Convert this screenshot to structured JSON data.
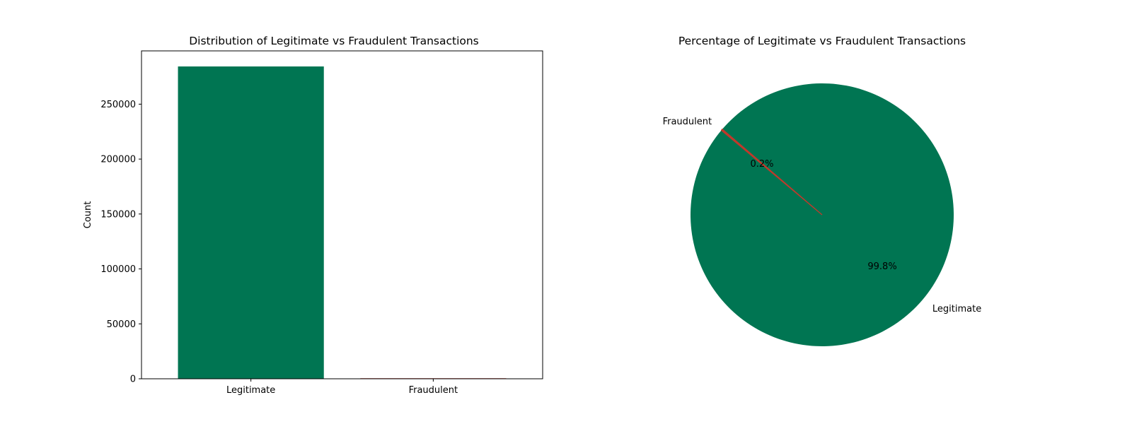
{
  "colors": {
    "legitimate": "#007552",
    "fraudulent": "#c0392b"
  },
  "chart_data": [
    {
      "type": "bar",
      "title": "Distribution of Legitimate vs Fraudulent Transactions",
      "xlabel": "",
      "ylabel": "Count",
      "categories": [
        "Legitimate",
        "Fraudulent"
      ],
      "values": [
        284315,
        492
      ],
      "ylim": [
        0,
        298500
      ],
      "yticks": [
        0,
        50000,
        100000,
        150000,
        200000,
        250000
      ],
      "ytick_labels": [
        "0",
        "50000",
        "100000",
        "150000",
        "200000",
        "250000"
      ],
      "grid": false,
      "legend": "none"
    },
    {
      "type": "pie",
      "title": "Percentage of Legitimate vs Fraudulent Transactions",
      "labels": [
        "Legitimate",
        "Fraudulent"
      ],
      "values": [
        99.8,
        0.2
      ],
      "value_labels": [
        "99.8%",
        "0.2%"
      ],
      "start_angle_deg": 140,
      "direction": "counterclockwise",
      "legend": "none"
    }
  ]
}
